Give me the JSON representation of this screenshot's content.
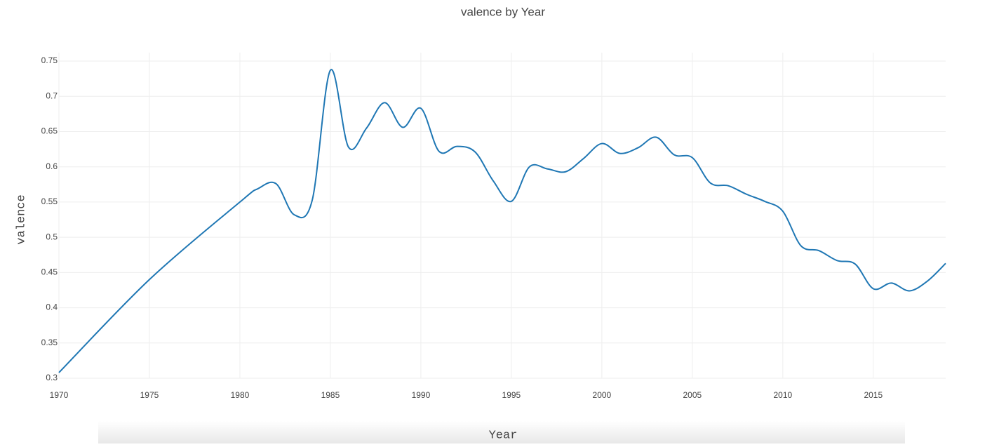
{
  "chart_data": {
    "type": "line",
    "title": "valence by Year",
    "x_label": "Year",
    "y_label": "valence",
    "x": [
      1970,
      1975,
      1980,
      1981,
      1982,
      1983,
      1984,
      1985,
      1986,
      1987,
      1988,
      1989,
      1990,
      1991,
      1992,
      1993,
      1994,
      1995,
      1996,
      1997,
      1998,
      1999,
      2000,
      2001,
      2002,
      2003,
      2004,
      2005,
      2006,
      2007,
      2008,
      2009,
      2010,
      2011,
      2012,
      2013,
      2014,
      2015,
      2016,
      2017,
      2018,
      2019
    ],
    "series": [
      {
        "name": "valence",
        "color": "#1f77b4",
        "values": [
          0.308,
          0.44,
          0.55,
          0.569,
          0.576,
          0.532,
          0.553,
          0.737,
          0.628,
          0.655,
          0.691,
          0.656,
          0.683,
          0.622,
          0.629,
          0.621,
          0.58,
          0.551,
          0.6,
          0.597,
          0.593,
          0.612,
          0.633,
          0.619,
          0.627,
          0.642,
          0.617,
          0.613,
          0.577,
          0.573,
          0.561,
          0.551,
          0.537,
          0.488,
          0.481,
          0.467,
          0.462,
          0.427,
          0.435,
          0.424,
          0.438,
          0.463
        ]
      }
    ],
    "xlim": [
      1970,
      2019
    ],
    "xticks": [
      1970,
      1975,
      1980,
      1985,
      1990,
      1995,
      2000,
      2005,
      2010,
      2015
    ],
    "ylim": [
      0.3,
      0.762
    ],
    "yticks": [
      0.3,
      0.35,
      0.4,
      0.45,
      0.5,
      0.55,
      0.6,
      0.65,
      0.7,
      0.75
    ],
    "grid": true
  }
}
